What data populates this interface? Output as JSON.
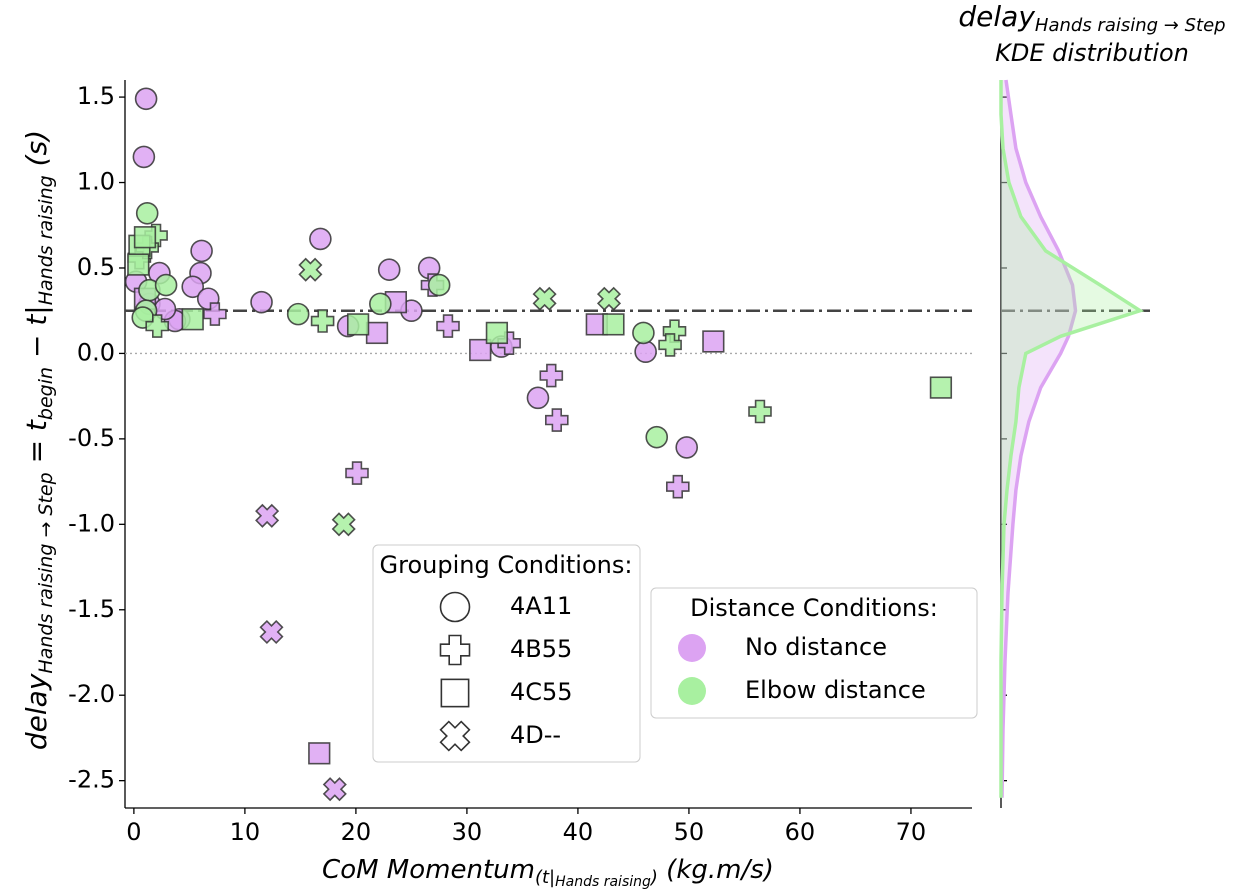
{
  "chart_data": {
    "type": "scatter",
    "xlabel_parts": [
      {
        "text": "CoM Momentum",
        "level": 0
      },
      {
        "text": "(t|",
        "level": 1
      },
      {
        "text": "Hands raising",
        "level": 2
      },
      {
        "text": ")",
        "level": 1
      },
      {
        "text": "  (kg.m/s)",
        "level": 0
      }
    ],
    "ylabel_parts": [
      {
        "text": "delay",
        "level": 0
      },
      {
        "text": "Hands raising → Step",
        "level": 1
      },
      {
        "text": " = t",
        "level": 0
      },
      {
        "text": "begin",
        "level": 1
      },
      {
        "text": " − t|",
        "level": 0
      },
      {
        "text": "Hands raising",
        "level": 1
      },
      {
        "text": " (s)",
        "level": 0
      }
    ],
    "xlim": [
      -0.8,
      75.5
    ],
    "ylim": [
      -2.66,
      1.6
    ],
    "xticks": [
      0,
      10,
      20,
      30,
      40,
      50,
      60,
      70
    ],
    "yticks": [
      1.5,
      {
        "value": 1,
        "label": "1.0"
      },
      0.5,
      {
        "value": 0,
        "label": "0.0"
      },
      -0.5,
      {
        "value": -1,
        "label": "-1.0"
      },
      -1.5,
      {
        "value": -2,
        "label": "-2.0"
      },
      -2.5
    ],
    "hlines": [
      {
        "y": 0.25,
        "style": "dashdot"
      },
      {
        "y": 0,
        "style": "dotted"
      }
    ],
    "grouping_legend_title": "Grouping Conditions:",
    "groupings": [
      {
        "name": "4A11",
        "marker": "circle"
      },
      {
        "name": "4B55",
        "marker": "plus"
      },
      {
        "name": "4C55",
        "marker": "square"
      },
      {
        "name": "4D--",
        "marker": "x"
      }
    ],
    "distance_legend_title": "Distance Conditions:",
    "distances": [
      {
        "name": "No distance",
        "color": "#dca3f2",
        "groups": [
          {
            "x": [
              1.1,
              0.9,
              16.8,
              6.1,
              6.0,
              2.3,
              23.0,
              26.6,
              5.3,
              6.7,
              11.5,
              25.0,
              19.3,
              33.1,
              46.1,
              36.4,
              49.8,
              4.1,
              3.7,
              0.2,
              1.4,
              2.8
            ],
            "y": [
              1.49,
              1.15,
              0.67,
              0.6,
              0.47,
              0.47,
              0.49,
              0.5,
              0.39,
              0.32,
              0.3,
              0.25,
              0.16,
              0.04,
              0.01,
              -0.26,
              -0.55,
              0.2,
              0.19,
              0.42,
              0.29,
              0.26
            ]
          },
          {
            "x": [
              26.9,
              28.3,
              37.6,
              38.1,
              20.1,
              49.0,
              7.3,
              33.8
            ],
            "y": [
              0.4,
              0.16,
              -0.13,
              -0.39,
              -0.7,
              -0.78,
              0.23,
              0.06
            ]
          },
          {
            "x": [
              16.7,
              21.9,
              23.6,
              41.7,
              52.2,
              31.2,
              1.0
            ],
            "y": [
              -2.34,
              0.12,
              0.3,
              0.17,
              0.07,
              0.02,
              0.32
            ]
          },
          {
            "x": [
              12.0,
              12.4,
              18.1
            ],
            "y": [
              -0.95,
              -1.63,
              -2.55
            ]
          }
        ]
      },
      {
        "name": "Elbow distance",
        "color": "#a8f0a0",
        "groups": [
          {
            "x": [
              1.2,
              1.4,
              2.9,
              22.2,
              27.5,
              14.8,
              45.9,
              47.1,
              1.1,
              0.8
            ],
            "y": [
              0.82,
              0.37,
              0.4,
              0.29,
              0.4,
              0.23,
              0.12,
              -0.49,
              0.25,
              0.21
            ]
          },
          {
            "x": [
              2.0,
              0.5,
              1.2,
              17.0,
              48.7,
              48.3,
              56.4,
              2.1
            ],
            "y": [
              0.69,
              0.56,
              0.62,
              0.19,
              0.13,
              0.05,
              -0.34,
              0.16
            ]
          },
          {
            "x": [
              0.5,
              1.0,
              72.7,
              43.2,
              32.7,
              20.2,
              5.3,
              0.4
            ],
            "y": [
              0.63,
              0.68,
              -0.2,
              0.17,
              0.12,
              0.17,
              0.2,
              0.52
            ]
          },
          {
            "x": [
              15.9,
              37.0,
              42.8,
              18.9
            ],
            "y": [
              0.49,
              0.32,
              0.32,
              -1.0
            ]
          }
        ]
      }
    ],
    "kde": {
      "title_parts": [
        {
          "text": "delay",
          "level": 0
        },
        {
          "text": "Hands raising → Step",
          "level": 1
        }
      ],
      "title_line2": "KDE distribution",
      "xlim": [
        0,
        1.5
      ],
      "y": [
        1.6,
        1.4,
        1.2,
        1.0,
        0.8,
        0.6,
        0.4,
        0.25,
        0.1,
        0.0,
        -0.2,
        -0.4,
        -0.6,
        -0.8,
        -1.0,
        -1.4,
        -1.8,
        -2.2,
        -2.6
      ],
      "densities": [
        [
          0.05,
          0.1,
          0.15,
          0.25,
          0.4,
          0.58,
          0.72,
          0.75,
          0.68,
          0.6,
          0.4,
          0.28,
          0.2,
          0.15,
          0.12,
          0.07,
          0.04,
          0.02,
          0.01
        ],
        [
          0.0,
          0.0,
          0.02,
          0.08,
          0.2,
          0.45,
          1.0,
          1.4,
          0.6,
          0.25,
          0.18,
          0.15,
          0.1,
          0.06,
          0.03,
          0.01,
          0.0,
          0.0,
          0.0
        ]
      ]
    }
  }
}
